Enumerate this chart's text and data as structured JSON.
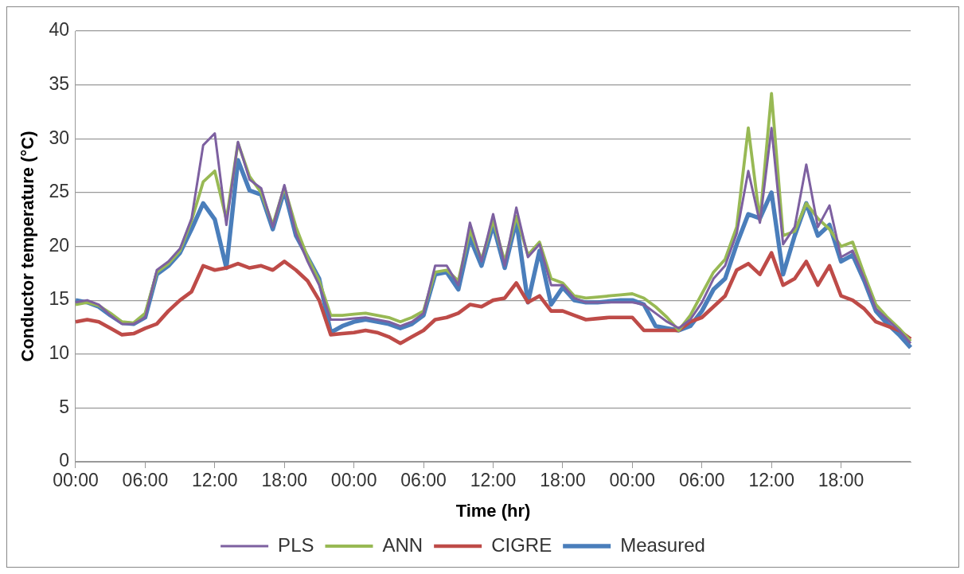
{
  "chart_data": {
    "type": "line",
    "xlabel": "Time (hr)",
    "ylabel": "Conductor temperature (°C)",
    "categories": [
      "00:00",
      null,
      null,
      null,
      null,
      null,
      "06:00",
      null,
      null,
      null,
      null,
      null,
      "12:00",
      null,
      null,
      null,
      null,
      null,
      "18:00",
      null,
      null,
      null,
      null,
      null,
      "00:00",
      null,
      null,
      null,
      null,
      null,
      "06:00",
      null,
      null,
      null,
      null,
      null,
      "12:00",
      null,
      null,
      null,
      null,
      null,
      "18:00",
      null,
      null,
      null,
      null,
      null,
      "00:00",
      null,
      null,
      null,
      null,
      null,
      "06:00",
      null,
      null,
      null,
      null,
      null,
      "12:00",
      null,
      null,
      null,
      null,
      null,
      "18:00",
      null,
      null,
      null,
      null,
      null,
      null
    ],
    "series": [
      {
        "name": "Measured",
        "color": "#4a7ebb",
        "values": [
          15,
          14.8,
          14.4,
          13.6,
          12.9,
          12.8,
          13.4,
          17.4,
          18.2,
          19.4,
          21.6,
          24,
          22.5,
          18,
          28,
          25.2,
          24.8,
          21.6,
          25.2,
          21,
          19,
          17,
          12,
          12.6,
          13,
          13.2,
          13,
          12.8,
          12.4,
          12.8,
          13.6,
          17.4,
          17.6,
          16,
          20.8,
          18.2,
          22,
          18,
          22.4,
          14.8,
          19.6,
          14.6,
          16.2,
          15,
          14.8,
          14.8,
          14.9,
          15,
          15,
          14.6,
          12.6,
          12.4,
          12.2,
          12.6,
          14,
          16,
          17,
          20.2,
          23,
          22.6,
          25,
          17.4,
          21,
          24,
          21,
          22,
          18.6,
          19.2,
          16.8,
          14,
          12.8,
          11.8,
          10.6
        ]
      },
      {
        "name": "CIGRE",
        "color": "#be4b48",
        "values": [
          13,
          13.2,
          13,
          12.4,
          11.8,
          11.9,
          12.4,
          12.8,
          14,
          15,
          15.8,
          18.2,
          17.8,
          18,
          18.4,
          18,
          18.2,
          17.8,
          18.6,
          17.8,
          16.8,
          15,
          11.8,
          11.9,
          12,
          12.2,
          12,
          11.6,
          11,
          11.6,
          12.2,
          13.2,
          13.4,
          13.8,
          14.6,
          14.4,
          15,
          15.2,
          16.6,
          14.8,
          15.4,
          14,
          14,
          13.6,
          13.2,
          13.3,
          13.4,
          13.4,
          13.4,
          12.2,
          12.2,
          12.2,
          12.2,
          13,
          13.4,
          14.4,
          15.4,
          17.8,
          18.4,
          17.4,
          19.4,
          16.4,
          17,
          18.6,
          16.4,
          18.2,
          15.4,
          15,
          14.2,
          13,
          12.6,
          12.2,
          11.4
        ]
      },
      {
        "name": "ANN",
        "color": "#98b954",
        "values": [
          14.6,
          14.8,
          14.5,
          13.8,
          13,
          12.9,
          13.8,
          17.6,
          18.4,
          19.6,
          22.4,
          26,
          27,
          22.5,
          29.6,
          26.5,
          25,
          22,
          25.5,
          21.8,
          19,
          16.8,
          13.6,
          13.6,
          13.7,
          13.8,
          13.6,
          13.4,
          13,
          13.4,
          14,
          17.6,
          17.8,
          16.8,
          21.5,
          18.8,
          22.4,
          18.6,
          22.8,
          19.2,
          20.4,
          17,
          16.6,
          15.4,
          15.2,
          15.3,
          15.4,
          15.5,
          15.6,
          15.2,
          14.4,
          13.4,
          12.2,
          13.6,
          15.6,
          17.6,
          18.8,
          21.8,
          31,
          22.4,
          34.2,
          21,
          21.4,
          24,
          22.6,
          21.6,
          20,
          20.4,
          17.4,
          14.6,
          13.4,
          12.4,
          11.2
        ]
      },
      {
        "name": "PLS",
        "color": "#7d60a0",
        "values": [
          14.8,
          15.0,
          14.6,
          13.6,
          12.8,
          12.8,
          13.4,
          17.8,
          18.6,
          19.8,
          22.6,
          29.4,
          30.5,
          22,
          29.7,
          26.2,
          25.4,
          21.8,
          25.7,
          21.2,
          18.6,
          16.4,
          13.2,
          13.2,
          13.3,
          13.4,
          13.2,
          13,
          12.6,
          13,
          13.8,
          18.2,
          18.2,
          16.4,
          22.2,
          18.6,
          23,
          18.2,
          23.6,
          19,
          20.2,
          16.4,
          16.4,
          15.2,
          14.8,
          14.8,
          14.8,
          14.8,
          14.8,
          14.6,
          13.8,
          13,
          12.4,
          13.2,
          14.8,
          17,
          18.2,
          21.2,
          27,
          22.2,
          31,
          20.2,
          21.8,
          27.6,
          21.8,
          23.8,
          19,
          19.6,
          17,
          14.2,
          13.2,
          12.2,
          11
        ]
      }
    ],
    "ylim": [
      0,
      40
    ],
    "yticks": [
      0,
      5,
      10,
      15,
      20,
      25,
      30,
      35,
      40
    ],
    "grid": "y",
    "legend": "bottom",
    "marker": "none",
    "line_style": "solid"
  }
}
